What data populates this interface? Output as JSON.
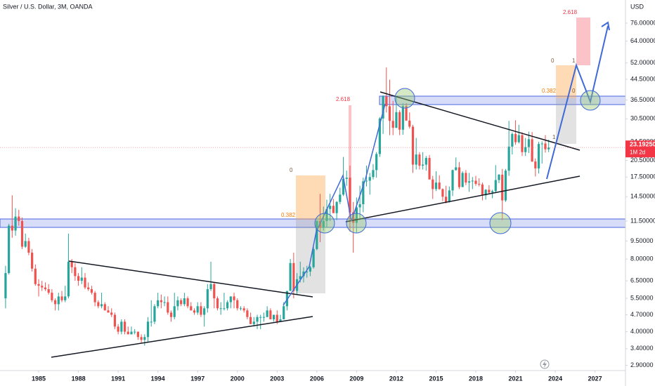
{
  "chart_data": {
    "type": "candlestick",
    "title": "Silver / U.S. Dollar, 3M, OANDA",
    "currency_label": "USD",
    "last_price_label": "23.19250",
    "countdown_label": "1M 2d",
    "annotations": [
      "2.618",
      "0",
      "0.382",
      "2.618",
      "0",
      "1",
      "0.382",
      "0",
      "1"
    ],
    "log_scale": true,
    "up_color": "#26a69a",
    "down_color": "#ef5350",
    "xlim": [
      1982.08,
      2029.3
    ],
    "ylim": [
      2.76,
      94.8
    ],
    "xticks": [
      1985,
      1988,
      1991,
      1994,
      1997,
      2000,
      2003,
      2006,
      2009,
      2012,
      2015,
      2018,
      2021,
      2024,
      2027
    ],
    "yticks": [
      {
        "value": 76,
        "label": "76.00000"
      },
      {
        "value": 64,
        "label": "64.00000"
      },
      {
        "value": 52,
        "label": "52.00000"
      },
      {
        "value": 44.5,
        "label": "44.50000"
      },
      {
        "value": 36.5,
        "label": "36.50000"
      },
      {
        "value": 30.5,
        "label": "30.50000"
      },
      {
        "value": 24.5,
        "label": "24.50000"
      },
      {
        "value": 20.5,
        "label": "20.50000"
      },
      {
        "value": 17.5,
        "label": "17.50000"
      },
      {
        "value": 14.5,
        "label": "14.50000"
      },
      {
        "value": 11.5,
        "label": "11.50000"
      },
      {
        "value": 9.5,
        "label": "9.50000"
      },
      {
        "value": 8,
        "label": "8.00000"
      },
      {
        "value": 6.5,
        "label": "6.50000"
      },
      {
        "value": 5.5,
        "label": "5.50000"
      },
      {
        "value": 4.7,
        "label": "4.70000"
      },
      {
        "value": 4,
        "label": "4.00000"
      },
      {
        "value": 3.4,
        "label": "3.40000"
      },
      {
        "value": 2.9,
        "label": "2.90000"
      }
    ],
    "x": [
      1982.5,
      1982.75,
      1983,
      1983.25,
      1983.5,
      1983.75,
      1984,
      1984.25,
      1984.5,
      1984.75,
      1985,
      1985.25,
      1985.5,
      1985.75,
      1986,
      1986.25,
      1986.5,
      1986.75,
      1987,
      1987.25,
      1987.5,
      1987.75,
      1988,
      1988.25,
      1988.5,
      1988.75,
      1989,
      1989.25,
      1989.5,
      1989.75,
      1990,
      1990.25,
      1990.5,
      1990.75,
      1991,
      1991.25,
      1991.5,
      1991.75,
      1992,
      1992.25,
      1992.5,
      1992.75,
      1993,
      1993.25,
      1993.5,
      1993.75,
      1994,
      1994.25,
      1994.5,
      1994.75,
      1995,
      1995.25,
      1995.5,
      1995.75,
      1996,
      1996.25,
      1996.5,
      1996.75,
      1997,
      1997.25,
      1997.5,
      1997.75,
      1998,
      1998.25,
      1998.5,
      1998.75,
      1999,
      1999.25,
      1999.5,
      1999.75,
      2000,
      2000.25,
      2000.5,
      2000.75,
      2001,
      2001.25,
      2001.5,
      2001.75,
      2002,
      2002.25,
      2002.5,
      2002.75,
      2003,
      2003.25,
      2003.5,
      2003.75,
      2004,
      2004.25,
      2004.5,
      2004.75,
      2005,
      2005.25,
      2005.5,
      2005.75,
      2006,
      2006.25,
      2006.5,
      2006.75,
      2007,
      2007.25,
      2007.5,
      2007.75,
      2008,
      2008.25,
      2008.5,
      2008.75,
      2009,
      2009.25,
      2009.5,
      2009.75,
      2010,
      2010.25,
      2010.5,
      2010.75,
      2011,
      2011.25,
      2011.5,
      2011.75,
      2012,
      2012.25,
      2012.5,
      2012.75,
      2013,
      2013.25,
      2013.5,
      2013.75,
      2014,
      2014.25,
      2014.5,
      2014.75,
      2015,
      2015.25,
      2015.5,
      2015.75,
      2016,
      2016.25,
      2016.5,
      2016.75,
      2017,
      2017.25,
      2017.5,
      2017.75,
      2018,
      2018.25,
      2018.5,
      2018.75,
      2019,
      2019.25,
      2019.5,
      2019.75,
      2020,
      2020.25,
      2020.5,
      2020.75,
      2021,
      2021.25,
      2021.5,
      2021.75,
      2022,
      2022.25,
      2022.5,
      2022.75,
      2023,
      2023.25,
      2023.5
    ],
    "ohlc": [
      [
        5.5,
        7.5,
        5.0,
        7.0
      ],
      [
        7.0,
        11.2,
        6.9,
        11.0
      ],
      [
        11.0,
        14.7,
        9.8,
        10.5
      ],
      [
        10.5,
        13.0,
        10.0,
        12.0
      ],
      [
        12.0,
        12.8,
        11.0,
        11.5
      ],
      [
        11.5,
        11.9,
        8.8,
        9.0
      ],
      [
        9.0,
        10.2,
        8.9,
        9.5
      ],
      [
        9.5,
        9.8,
        8.3,
        8.5
      ],
      [
        8.5,
        8.8,
        7.1,
        7.3
      ],
      [
        7.3,
        7.6,
        6.2,
        6.3
      ],
      [
        6.3,
        6.6,
        5.6,
        6.2
      ],
      [
        6.2,
        6.5,
        5.9,
        6.1
      ],
      [
        6.1,
        6.4,
        5.9,
        6.0
      ],
      [
        6.0,
        6.3,
        5.7,
        5.8
      ],
      [
        5.8,
        6.0,
        5.3,
        5.4
      ],
      [
        5.4,
        5.5,
        4.9,
        5.2
      ],
      [
        5.2,
        5.8,
        4.9,
        5.6
      ],
      [
        5.6,
        5.9,
        5.3,
        5.4
      ],
      [
        5.4,
        6.2,
        5.3,
        5.6
      ],
      [
        5.6,
        10.2,
        5.5,
        7.8
      ],
      [
        7.8,
        8.0,
        7.0,
        7.4
      ],
      [
        7.4,
        7.7,
        6.5,
        6.8
      ],
      [
        6.8,
        7.0,
        6.2,
        6.5
      ],
      [
        6.5,
        7.4,
        6.3,
        6.7
      ],
      [
        6.7,
        7.0,
        6.0,
        6.1
      ],
      [
        6.1,
        6.4,
        5.9,
        6.0
      ],
      [
        6.0,
        6.2,
        5.7,
        5.8
      ],
      [
        5.8,
        5.9,
        5.1,
        5.3
      ],
      [
        5.3,
        5.4,
        5.0,
        5.1
      ],
      [
        5.1,
        5.8,
        5.0,
        5.2
      ],
      [
        5.2,
        5.3,
        4.9,
        4.9
      ],
      [
        4.9,
        5.1,
        4.8,
        4.8
      ],
      [
        4.8,
        5.0,
        4.6,
        4.7
      ],
      [
        4.7,
        4.8,
        4.1,
        4.2
      ],
      [
        4.2,
        4.3,
        3.9,
        4.0
      ],
      [
        4.0,
        4.5,
        3.9,
        4.4
      ],
      [
        4.4,
        4.5,
        3.9,
        4.0
      ],
      [
        4.0,
        4.2,
        3.9,
        3.9
      ],
      [
        3.9,
        4.2,
        3.9,
        4.0
      ],
      [
        4.0,
        4.1,
        3.9,
        4.0
      ],
      [
        4.0,
        4.0,
        3.7,
        3.8
      ],
      [
        3.8,
        3.9,
        3.6,
        3.7
      ],
      [
        3.7,
        3.9,
        3.5,
        3.8
      ],
      [
        3.8,
        4.6,
        3.6,
        4.4
      ],
      [
        4.4,
        5.4,
        4.2,
        4.4
      ],
      [
        4.4,
        5.2,
        4.3,
        5.1
      ],
      [
        5.1,
        5.8,
        5.0,
        5.4
      ],
      [
        5.4,
        5.7,
        5.0,
        5.3
      ],
      [
        5.3,
        5.6,
        5.1,
        5.3
      ],
      [
        5.3,
        5.6,
        4.7,
        4.8
      ],
      [
        4.8,
        4.9,
        4.4,
        4.6
      ],
      [
        4.6,
        5.8,
        4.5,
        5.1
      ],
      [
        5.1,
        5.6,
        4.9,
        5.4
      ],
      [
        5.4,
        5.5,
        5.1,
        5.2
      ],
      [
        5.2,
        5.8,
        5.1,
        5.5
      ],
      [
        5.5,
        5.6,
        5.0,
        5.1
      ],
      [
        5.1,
        5.3,
        4.9,
        4.9
      ],
      [
        4.9,
        5.0,
        4.7,
        4.8
      ],
      [
        4.8,
        5.3,
        4.7,
        5.1
      ],
      [
        5.1,
        5.3,
        4.6,
        4.7
      ],
      [
        4.7,
        5.1,
        4.2,
        5.0
      ],
      [
        5.0,
        6.3,
        4.8,
        6.0
      ],
      [
        6.0,
        7.8,
        5.9,
        6.3
      ],
      [
        6.3,
        6.4,
        5.0,
        5.5
      ],
      [
        5.5,
        5.6,
        4.9,
        5.0
      ],
      [
        5.0,
        5.3,
        4.7,
        5.0
      ],
      [
        5.0,
        5.8,
        4.9,
        5.0
      ],
      [
        5.0,
        5.4,
        4.9,
        5.3
      ],
      [
        5.3,
        5.6,
        5.0,
        5.6
      ],
      [
        5.6,
        5.8,
        5.0,
        5.4
      ],
      [
        5.4,
        5.5,
        4.9,
        5.0
      ],
      [
        5.0,
        5.1,
        4.9,
        5.0
      ],
      [
        5.0,
        5.1,
        4.8,
        4.9
      ],
      [
        4.9,
        5.0,
        4.5,
        4.6
      ],
      [
        4.6,
        4.8,
        4.3,
        4.3
      ],
      [
        4.3,
        4.6,
        4.2,
        4.4
      ],
      [
        4.4,
        4.7,
        4.1,
        4.6
      ],
      [
        4.6,
        4.7,
        4.1,
        4.6
      ],
      [
        4.6,
        4.8,
        4.4,
        4.6
      ],
      [
        4.6,
        5.1,
        4.6,
        4.9
      ],
      [
        4.9,
        5.0,
        4.5,
        4.5
      ],
      [
        4.5,
        4.7,
        4.4,
        4.7
      ],
      [
        4.7,
        4.9,
        4.3,
        4.4
      ],
      [
        4.4,
        4.7,
        4.4,
        4.5
      ],
      [
        4.5,
        5.3,
        4.5,
        5.1
      ],
      [
        5.1,
        5.9,
        4.9,
        5.9
      ],
      [
        5.9,
        8.0,
        5.9,
        7.7
      ],
      [
        7.7,
        8.5,
        5.5,
        5.9
      ],
      [
        5.9,
        7.0,
        5.7,
        6.6
      ],
      [
        6.6,
        7.8,
        6.4,
        6.8
      ],
      [
        6.8,
        7.4,
        6.4,
        7.1
      ],
      [
        7.1,
        7.5,
        6.7,
        7.1
      ],
      [
        7.1,
        7.5,
        6.8,
        7.4
      ],
      [
        7.4,
        9.0,
        7.3,
        8.8
      ],
      [
        8.8,
        11.6,
        8.7,
        11.5
      ],
      [
        11.5,
        14.9,
        9.4,
        10.8
      ],
      [
        10.8,
        13.2,
        10.5,
        11.5
      ],
      [
        11.5,
        14.1,
        10.8,
        12.9
      ],
      [
        12.9,
        14.9,
        11.5,
        13.3
      ],
      [
        13.3,
        14.2,
        12.4,
        12.4
      ],
      [
        12.4,
        13.9,
        11.6,
        13.8
      ],
      [
        13.8,
        15.8,
        13.5,
        14.8
      ],
      [
        14.8,
        21.2,
        14.6,
        17.2
      ],
      [
        17.2,
        18.6,
        16.1,
        17.4
      ],
      [
        17.4,
        19.5,
        10.4,
        12.5
      ],
      [
        12.5,
        13.8,
        8.5,
        11.3
      ],
      [
        11.3,
        14.4,
        10.3,
        13.1
      ],
      [
        13.1,
        16.1,
        11.6,
        13.5
      ],
      [
        13.5,
        17.4,
        12.5,
        16.8
      ],
      [
        16.8,
        19.5,
        16.0,
        16.9
      ],
      [
        16.9,
        18.2,
        14.8,
        17.5
      ],
      [
        17.5,
        19.8,
        17.1,
        18.7
      ],
      [
        18.7,
        22.2,
        17.4,
        21.8
      ],
      [
        21.8,
        31.0,
        21.2,
        30.6
      ],
      [
        30.6,
        38.2,
        26.4,
        37.8
      ],
      [
        37.8,
        49.8,
        32.4,
        34.4
      ],
      [
        34.4,
        44.3,
        26.1,
        29.9
      ],
      [
        29.9,
        36.2,
        26.1,
        28.0
      ],
      [
        28.0,
        37.5,
        27.9,
        32.5
      ],
      [
        32.5,
        33.1,
        26.1,
        27.5
      ],
      [
        27.5,
        35.4,
        26.2,
        34.5
      ],
      [
        34.5,
        35.4,
        29.9,
        30.0
      ],
      [
        30.0,
        32.4,
        27.8,
        28.3
      ],
      [
        28.3,
        28.8,
        18.2,
        19.7
      ],
      [
        19.7,
        25.4,
        18.8,
        21.7
      ],
      [
        21.7,
        22.2,
        18.8,
        19.5
      ],
      [
        19.5,
        22.2,
        18.8,
        19.7
      ],
      [
        19.7,
        21.4,
        18.6,
        21.0
      ],
      [
        21.0,
        21.6,
        17.1,
        17.1
      ],
      [
        17.1,
        17.7,
        14.2,
        15.6
      ],
      [
        15.6,
        18.5,
        15.3,
        16.6
      ],
      [
        16.6,
        17.8,
        15.5,
        15.6
      ],
      [
        15.6,
        15.7,
        13.9,
        14.5
      ],
      [
        14.5,
        16.1,
        13.6,
        13.8
      ],
      [
        13.8,
        16.0,
        13.7,
        15.4
      ],
      [
        15.4,
        18.8,
        14.6,
        18.7
      ],
      [
        18.7,
        21.1,
        18.6,
        19.2
      ],
      [
        19.2,
        20.2,
        15.6,
        15.9
      ],
      [
        15.9,
        18.5,
        15.9,
        18.2
      ],
      [
        18.2,
        18.7,
        16.2,
        16.6
      ],
      [
        16.6,
        18.2,
        15.2,
        16.8
      ],
      [
        16.8,
        17.5,
        15.6,
        16.9
      ],
      [
        16.9,
        17.7,
        16.1,
        16.4
      ],
      [
        16.4,
        17.3,
        16.0,
        16.3
      ],
      [
        16.3,
        16.6,
        14.0,
        14.7
      ],
      [
        14.7,
        15.6,
        14.1,
        15.5
      ],
      [
        15.5,
        16.2,
        14.8,
        15.1
      ],
      [
        15.1,
        15.5,
        14.3,
        15.3
      ],
      [
        15.3,
        19.6,
        15.0,
        17.0
      ],
      [
        17.0,
        18.0,
        16.5,
        17.9
      ],
      [
        17.9,
        18.9,
        11.6,
        14.0
      ],
      [
        14.0,
        18.9,
        13.8,
        18.6
      ],
      [
        18.6,
        29.9,
        17.7,
        23.4
      ],
      [
        23.4,
        26.8,
        21.7,
        26.4
      ],
      [
        26.4,
        30.1,
        23.8,
        24.4
      ],
      [
        24.4,
        28.8,
        24.1,
        26.1
      ],
      [
        26.1,
        26.8,
        21.4,
        22.2
      ],
      [
        22.2,
        25.4,
        21.4,
        23.3
      ],
      [
        23.3,
        27.0,
        22.0,
        25.1
      ],
      [
        25.1,
        26.9,
        20.2,
        20.3
      ],
      [
        20.3,
        20.9,
        17.6,
        19.0
      ],
      [
        19.0,
        24.5,
        18.1,
        24.0
      ],
      [
        24.0,
        24.6,
        19.9,
        24.1
      ],
      [
        24.1,
        26.1,
        22.1,
        22.8
      ],
      [
        22.8,
        25.0,
        22.2,
        23.1925
      ]
    ]
  }
}
